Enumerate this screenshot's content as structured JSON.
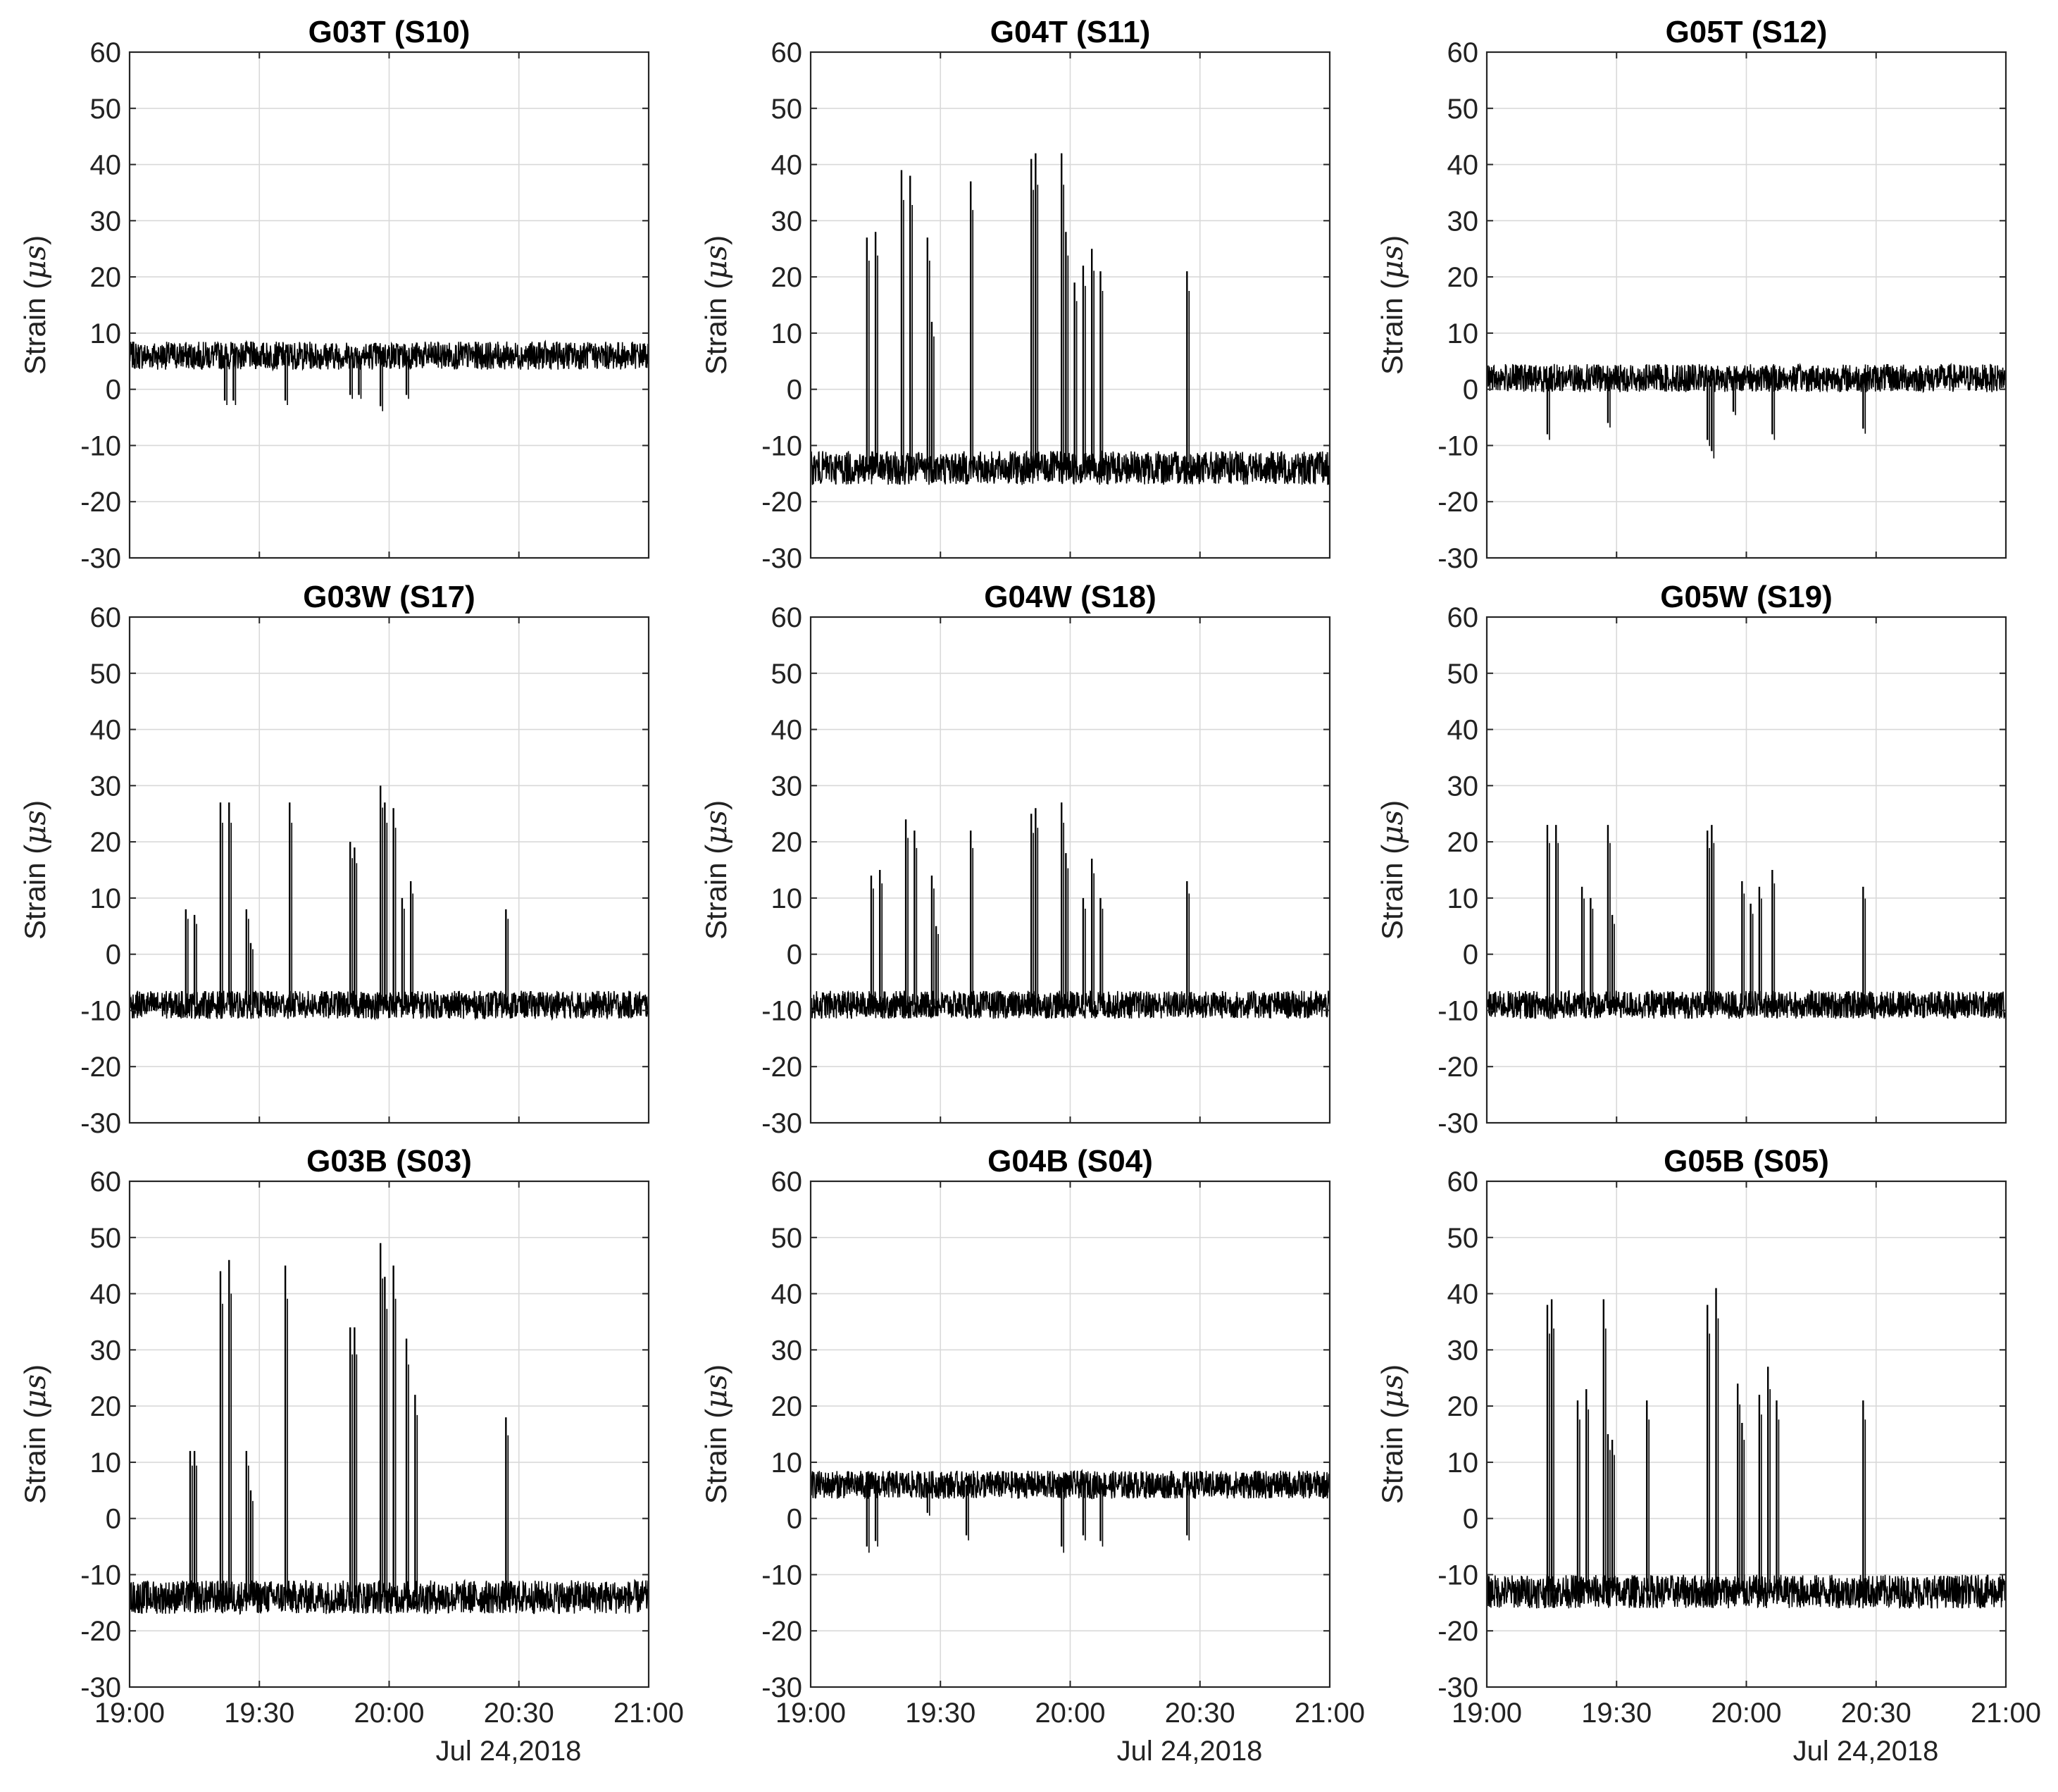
{
  "figure": {
    "ylabel_prefix": "Strain (",
    "ylabel_unit": "μs",
    "ylabel_suffix": ")",
    "date_label": "Jul 24,2018",
    "line_color": "#000000",
    "grid": true
  },
  "chart_data": [
    {
      "type": "line",
      "title": "G03T (S10)",
      "xlim": [
        "19:00",
        "21:00"
      ],
      "ylim": [
        -30,
        60
      ],
      "xticks": [
        "19:00",
        "19:30",
        "20:00",
        "20:30",
        "21:00"
      ],
      "yticks": [
        60,
        50,
        40,
        30,
        20,
        10,
        0,
        -10,
        -20,
        -30
      ],
      "baseline": 6,
      "noise": 2.5,
      "spikes": [
        {
          "t": "19:22",
          "y": -2
        },
        {
          "t": "19:24",
          "y": -2
        },
        {
          "t": "19:36",
          "y": -2
        },
        {
          "t": "19:51",
          "y": -1
        },
        {
          "t": "19:53",
          "y": -1
        },
        {
          "t": "19:58",
          "y": -3
        },
        {
          "t": "20:04",
          "y": -1
        }
      ]
    },
    {
      "type": "line",
      "title": "G04T (S11)",
      "xlim": [
        "19:00",
        "21:00"
      ],
      "ylim": [
        -30,
        60
      ],
      "xticks": [
        "19:00",
        "19:30",
        "20:00",
        "20:30",
        "21:00"
      ],
      "yticks": [
        60,
        50,
        40,
        30,
        20,
        10,
        0,
        -10,
        -20,
        -30
      ],
      "baseline": -14,
      "noise": 3,
      "spikes": [
        {
          "t": "19:13",
          "y": 27
        },
        {
          "t": "19:15",
          "y": 28
        },
        {
          "t": "19:21",
          "y": 39
        },
        {
          "t": "19:23",
          "y": 38
        },
        {
          "t": "19:27",
          "y": 27
        },
        {
          "t": "19:28",
          "y": 12
        },
        {
          "t": "19:37",
          "y": 37
        },
        {
          "t": "19:51",
          "y": 41
        },
        {
          "t": "19:52",
          "y": 42
        },
        {
          "t": "19:58",
          "y": 42
        },
        {
          "t": "19:59",
          "y": 28
        },
        {
          "t": "20:01",
          "y": 19
        },
        {
          "t": "20:03",
          "y": 22
        },
        {
          "t": "20:05",
          "y": 25
        },
        {
          "t": "20:07",
          "y": 21
        },
        {
          "t": "20:27",
          "y": 21
        }
      ]
    },
    {
      "type": "line",
      "title": "G05T (S12)",
      "xlim": [
        "19:00",
        "21:00"
      ],
      "ylim": [
        -30,
        60
      ],
      "xticks": [
        "19:00",
        "19:30",
        "20:00",
        "20:30",
        "21:00"
      ],
      "yticks": [
        60,
        50,
        40,
        30,
        20,
        10,
        0,
        -10,
        -20,
        -30
      ],
      "baseline": 2,
      "noise": 2.5,
      "spikes": [
        {
          "t": "19:14",
          "y": -8
        },
        {
          "t": "19:28",
          "y": -6
        },
        {
          "t": "19:51",
          "y": -9
        },
        {
          "t": "19:52",
          "y": -11
        },
        {
          "t": "19:57",
          "y": -4
        },
        {
          "t": "20:06",
          "y": -8
        },
        {
          "t": "20:27",
          "y": -7
        }
      ]
    },
    {
      "type": "line",
      "title": "G03W (S17)",
      "xlim": [
        "19:00",
        "21:00"
      ],
      "ylim": [
        -30,
        60
      ],
      "xticks": [
        "19:00",
        "19:30",
        "20:00",
        "20:30",
        "21:00"
      ],
      "yticks": [
        60,
        50,
        40,
        30,
        20,
        10,
        0,
        -10,
        -20,
        -30
      ],
      "baseline": -9,
      "noise": 2.5,
      "spikes": [
        {
          "t": "19:13",
          "y": 8
        },
        {
          "t": "19:15",
          "y": 7
        },
        {
          "t": "19:21",
          "y": 27
        },
        {
          "t": "19:23",
          "y": 27
        },
        {
          "t": "19:27",
          "y": 8
        },
        {
          "t": "19:28",
          "y": 2
        },
        {
          "t": "19:37",
          "y": 27
        },
        {
          "t": "19:51",
          "y": 20
        },
        {
          "t": "19:52",
          "y": 19
        },
        {
          "t": "19:58",
          "y": 30
        },
        {
          "t": "19:59",
          "y": 27
        },
        {
          "t": "20:01",
          "y": 26
        },
        {
          "t": "20:03",
          "y": 10
        },
        {
          "t": "20:05",
          "y": 13
        },
        {
          "t": "20:27",
          "y": 8
        }
      ]
    },
    {
      "type": "line",
      "title": "G04W (S18)",
      "xlim": [
        "19:00",
        "21:00"
      ],
      "ylim": [
        -30,
        60
      ],
      "xticks": [
        "19:00",
        "19:30",
        "20:00",
        "20:30",
        "21:00"
      ],
      "yticks": [
        60,
        50,
        40,
        30,
        20,
        10,
        0,
        -10,
        -20,
        -30
      ],
      "baseline": -9,
      "noise": 2.5,
      "spikes": [
        {
          "t": "19:14",
          "y": 14
        },
        {
          "t": "19:16",
          "y": 15
        },
        {
          "t": "19:22",
          "y": 24
        },
        {
          "t": "19:24",
          "y": 22
        },
        {
          "t": "19:28",
          "y": 14
        },
        {
          "t": "19:29",
          "y": 5
        },
        {
          "t": "19:37",
          "y": 22
        },
        {
          "t": "19:51",
          "y": 25
        },
        {
          "t": "19:52",
          "y": 26
        },
        {
          "t": "19:58",
          "y": 27
        },
        {
          "t": "19:59",
          "y": 18
        },
        {
          "t": "20:03",
          "y": 10
        },
        {
          "t": "20:05",
          "y": 17
        },
        {
          "t": "20:07",
          "y": 10
        },
        {
          "t": "20:27",
          "y": 13
        }
      ]
    },
    {
      "type": "line",
      "title": "G05W (S19)",
      "xlim": [
        "19:00",
        "21:00"
      ],
      "ylim": [
        -30,
        60
      ],
      "xticks": [
        "19:00",
        "19:30",
        "20:00",
        "20:30",
        "21:00"
      ],
      "yticks": [
        60,
        50,
        40,
        30,
        20,
        10,
        0,
        -10,
        -20,
        -30
      ],
      "baseline": -9,
      "noise": 2.5,
      "spikes": [
        {
          "t": "19:14",
          "y": 23
        },
        {
          "t": "19:16",
          "y": 23
        },
        {
          "t": "19:22",
          "y": 12
        },
        {
          "t": "19:24",
          "y": 10
        },
        {
          "t": "19:28",
          "y": 23
        },
        {
          "t": "19:29",
          "y": 7
        },
        {
          "t": "19:51",
          "y": 22
        },
        {
          "t": "19:52",
          "y": 23
        },
        {
          "t": "19:59",
          "y": 13
        },
        {
          "t": "20:01",
          "y": 9
        },
        {
          "t": "20:03",
          "y": 12
        },
        {
          "t": "20:06",
          "y": 15
        },
        {
          "t": "20:27",
          "y": 12
        }
      ]
    },
    {
      "type": "line",
      "title": "G03B (S03)",
      "xlim": [
        "19:00",
        "21:00"
      ],
      "ylim": [
        -30,
        60
      ],
      "xticks": [
        "19:00",
        "19:30",
        "20:00",
        "20:30",
        "21:00"
      ],
      "yticks": [
        60,
        50,
        40,
        30,
        20,
        10,
        0,
        -10,
        -20,
        -30
      ],
      "baseline": -14,
      "noise": 3,
      "spikes": [
        {
          "t": "19:14",
          "y": 12
        },
        {
          "t": "19:15",
          "y": 12
        },
        {
          "t": "19:21",
          "y": 44
        },
        {
          "t": "19:23",
          "y": 46
        },
        {
          "t": "19:27",
          "y": 12
        },
        {
          "t": "19:28",
          "y": 5
        },
        {
          "t": "19:36",
          "y": 45
        },
        {
          "t": "19:51",
          "y": 34
        },
        {
          "t": "19:52",
          "y": 34
        },
        {
          "t": "19:58",
          "y": 49
        },
        {
          "t": "19:59",
          "y": 43
        },
        {
          "t": "20:01",
          "y": 45
        },
        {
          "t": "20:04",
          "y": 32
        },
        {
          "t": "20:06",
          "y": 22
        },
        {
          "t": "20:27",
          "y": 18
        }
      ]
    },
    {
      "type": "line",
      "title": "G04B (S04)",
      "xlim": [
        "19:00",
        "21:00"
      ],
      "ylim": [
        -30,
        60
      ],
      "xticks": [
        "19:00",
        "19:30",
        "20:00",
        "20:30",
        "21:00"
      ],
      "yticks": [
        60,
        50,
        40,
        30,
        20,
        10,
        0,
        -10,
        -20,
        -30
      ],
      "baseline": 6,
      "noise": 2.5,
      "spikes": [
        {
          "t": "19:13",
          "y": -5
        },
        {
          "t": "19:15",
          "y": -4
        },
        {
          "t": "19:27",
          "y": 1
        },
        {
          "t": "19:36",
          "y": -3
        },
        {
          "t": "19:58",
          "y": -5
        },
        {
          "t": "20:03",
          "y": -3
        },
        {
          "t": "20:07",
          "y": -4
        },
        {
          "t": "20:27",
          "y": -3
        }
      ]
    },
    {
      "type": "line",
      "title": "G05B (S05)",
      "xlim": [
        "19:00",
        "21:00"
      ],
      "ylim": [
        -30,
        60
      ],
      "xticks": [
        "19:00",
        "19:30",
        "20:00",
        "20:30",
        "21:00"
      ],
      "yticks": [
        60,
        50,
        40,
        30,
        20,
        10,
        0,
        -10,
        -20,
        -30
      ],
      "baseline": -13,
      "noise": 3,
      "spikes": [
        {
          "t": "19:14",
          "y": 38
        },
        {
          "t": "19:15",
          "y": 39
        },
        {
          "t": "19:21",
          "y": 21
        },
        {
          "t": "19:23",
          "y": 23
        },
        {
          "t": "19:27",
          "y": 39
        },
        {
          "t": "19:28",
          "y": 15
        },
        {
          "t": "19:29",
          "y": 14
        },
        {
          "t": "19:37",
          "y": 21
        },
        {
          "t": "19:51",
          "y": 38
        },
        {
          "t": "19:53",
          "y": 41
        },
        {
          "t": "19:58",
          "y": 24
        },
        {
          "t": "19:59",
          "y": 17
        },
        {
          "t": "20:03",
          "y": 22
        },
        {
          "t": "20:05",
          "y": 27
        },
        {
          "t": "20:07",
          "y": 21
        },
        {
          "t": "20:27",
          "y": 21
        }
      ]
    }
  ]
}
